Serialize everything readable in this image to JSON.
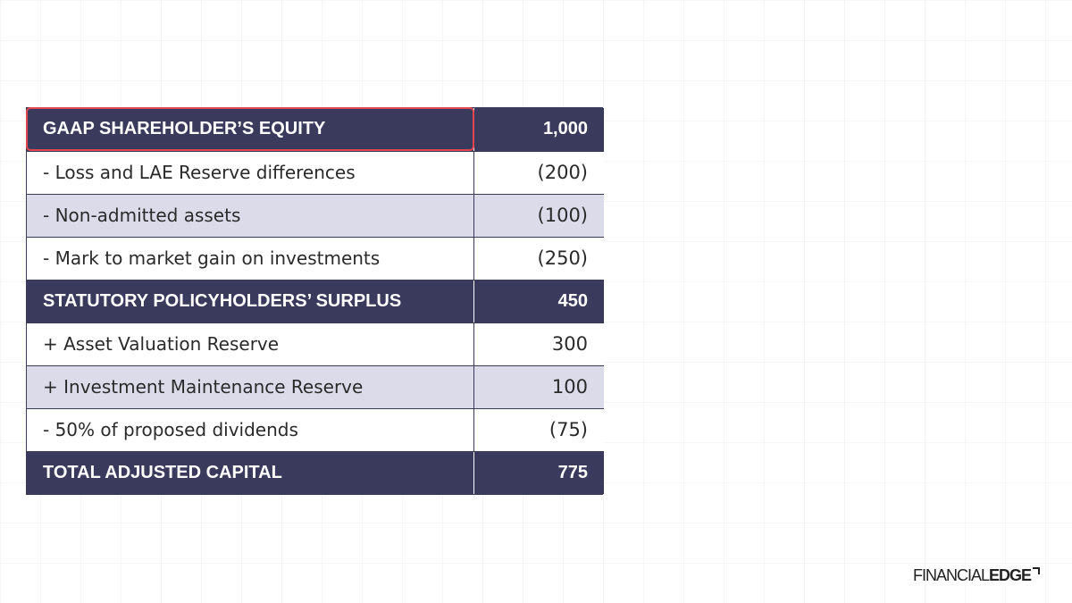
{
  "table": {
    "rows": [
      {
        "label": "GAAP SHAREHOLDER’S EQUITY",
        "value": "1,000",
        "kind": "total"
      },
      {
        "label": "- Loss and LAE Reserve differences",
        "value": "(200)",
        "kind": "white"
      },
      {
        "label": "- Non-admitted assets",
        "value": "(100)",
        "kind": "shaded"
      },
      {
        "label": "- Mark to market gain on investments",
        "value": "(250)",
        "kind": "white"
      },
      {
        "label": "STATUTORY POLICYHOLDERS’ SURPLUS",
        "value": "450",
        "kind": "total"
      },
      {
        "label": "+ Asset Valuation Reserve",
        "value": "300",
        "kind": "white"
      },
      {
        "label": "+ Investment Maintenance Reserve",
        "value": "100",
        "kind": "shaded"
      },
      {
        "label": "- 50% of proposed dividends",
        "value": "(75)",
        "kind": "white"
      },
      {
        "label": "TOTAL ADJUSTED CAPITAL",
        "value": "775",
        "kind": "total"
      }
    ]
  },
  "logo": {
    "part1": "FINANCIAL",
    "part2": "EDGE"
  },
  "colors": {
    "header_fill": "#393a5c",
    "shaded_fill": "#dcdbea",
    "highlight": "#e2464f"
  }
}
